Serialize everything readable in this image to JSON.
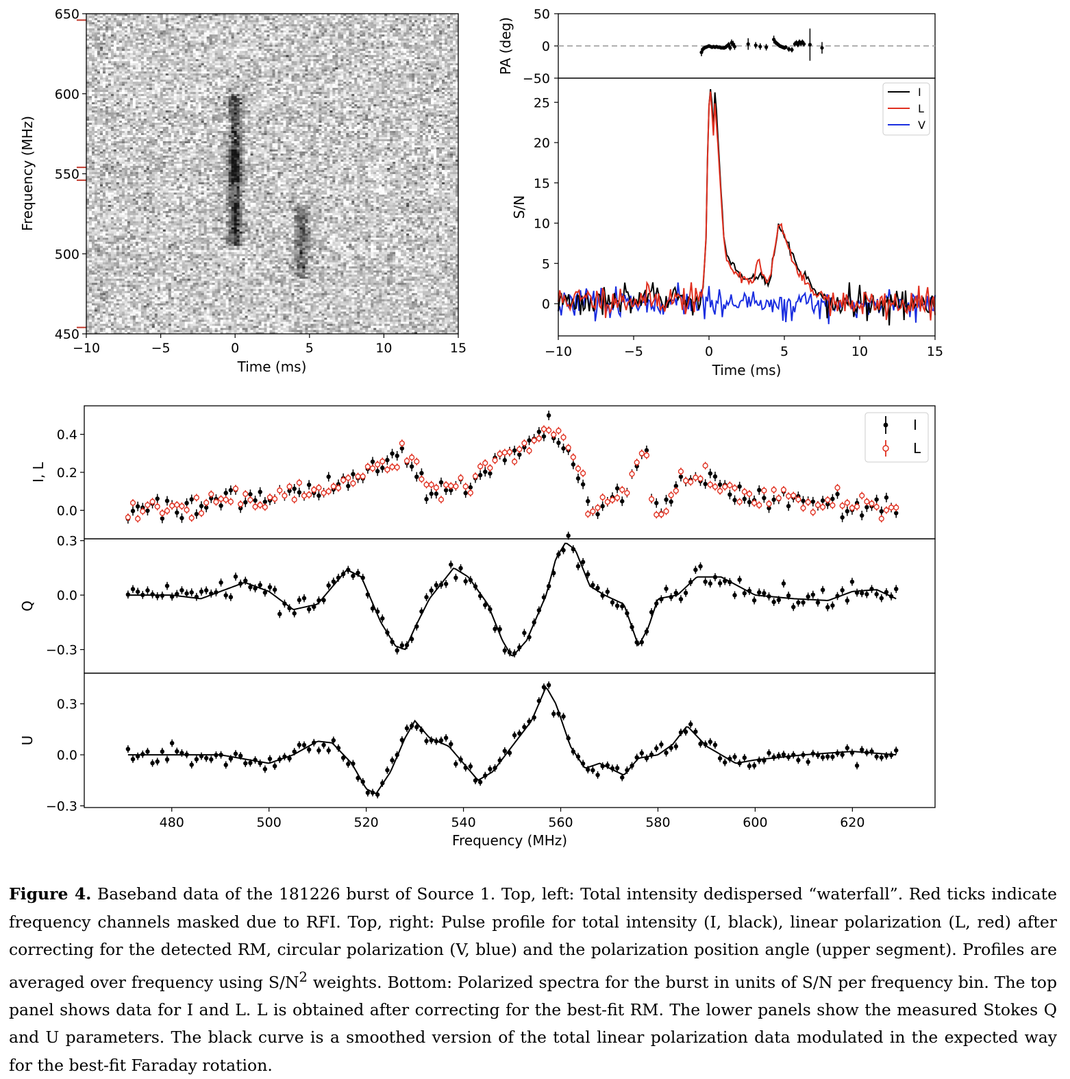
{
  "chart_data": [
    {
      "id": "waterfall",
      "type": "heatmap",
      "title": "",
      "xlabel": "Time (ms)",
      "ylabel": "Frequency (MHz)",
      "xlim": [
        -10,
        15
      ],
      "ylim": [
        450,
        650
      ],
      "xticks": [
        -10,
        -5,
        0,
        5,
        10,
        15
      ],
      "xtick_labels": [
        "−10",
        "−5",
        "0",
        "5",
        "10",
        "15"
      ],
      "yticks": [
        450,
        500,
        550,
        600,
        650
      ],
      "ytick_labels": [
        "450",
        "500",
        "550",
        "600",
        "650"
      ],
      "colormap": "grayscale",
      "rfi_tick_color": "#c0392b",
      "rfi_masked_mhz": [
        646,
        554,
        546,
        454
      ],
      "components": [
        {
          "time_ms": 0.0,
          "freq_mhz": [
            505,
            600
          ]
        },
        {
          "time_ms": 4.5,
          "freq_mhz": [
            485,
            530
          ]
        }
      ]
    },
    {
      "id": "position-angle",
      "type": "scatter",
      "xlim": [
        -10,
        15
      ],
      "ylim": [
        -50,
        50
      ],
      "ylabel": "PA (deg)",
      "yticks": [
        -50,
        0,
        50
      ],
      "ytick_labels": [
        "−50",
        "0",
        "50"
      ],
      "reference_line": {
        "y": 0,
        "style": "dashed",
        "color": "#b0b0b0"
      },
      "points": [
        {
          "x": -0.5,
          "y": -10,
          "err": 6
        },
        {
          "x": -0.4,
          "y": -5,
          "err": 4
        },
        {
          "x": -0.3,
          "y": -3,
          "err": 3
        },
        {
          "x": -0.2,
          "y": -2,
          "err": 2
        },
        {
          "x": -0.1,
          "y": -1,
          "err": 2
        },
        {
          "x": 0.0,
          "y": 0,
          "err": 1
        },
        {
          "x": 0.1,
          "y": -1,
          "err": 1
        },
        {
          "x": 0.2,
          "y": -2,
          "err": 1
        },
        {
          "x": 0.3,
          "y": -1,
          "err": 1
        },
        {
          "x": 0.4,
          "y": -2,
          "err": 1
        },
        {
          "x": 0.5,
          "y": -1,
          "err": 1
        },
        {
          "x": 0.6,
          "y": -2,
          "err": 2
        },
        {
          "x": 0.7,
          "y": -2,
          "err": 2
        },
        {
          "x": 0.8,
          "y": -3,
          "err": 2
        },
        {
          "x": 0.9,
          "y": -3,
          "err": 2
        },
        {
          "x": 1.0,
          "y": -3,
          "err": 3
        },
        {
          "x": 1.1,
          "y": -2,
          "err": 3
        },
        {
          "x": 1.2,
          "y": 0,
          "err": 3
        },
        {
          "x": 1.3,
          "y": 2,
          "err": 4
        },
        {
          "x": 1.4,
          "y": -3,
          "err": 4
        },
        {
          "x": 1.5,
          "y": 5,
          "err": 5
        },
        {
          "x": 1.6,
          "y": 3,
          "err": 5
        },
        {
          "x": 1.7,
          "y": -1,
          "err": 5
        },
        {
          "x": 2.6,
          "y": 3,
          "err": 9
        },
        {
          "x": 3.1,
          "y": 1,
          "err": 5
        },
        {
          "x": 3.4,
          "y": -1,
          "err": 5
        },
        {
          "x": 3.8,
          "y": -2,
          "err": 5
        },
        {
          "x": 4.3,
          "y": 10,
          "err": 6
        },
        {
          "x": 4.4,
          "y": 6,
          "err": 4
        },
        {
          "x": 4.5,
          "y": 4,
          "err": 3
        },
        {
          "x": 4.6,
          "y": 2,
          "err": 3
        },
        {
          "x": 4.7,
          "y": 0,
          "err": 3
        },
        {
          "x": 4.8,
          "y": -1,
          "err": 3
        },
        {
          "x": 4.9,
          "y": -2,
          "err": 3
        },
        {
          "x": 5.0,
          "y": -3,
          "err": 3
        },
        {
          "x": 5.1,
          "y": -2,
          "err": 3
        },
        {
          "x": 5.3,
          "y": -5,
          "err": 4
        },
        {
          "x": 5.5,
          "y": -6,
          "err": 4
        },
        {
          "x": 5.7,
          "y": 3,
          "err": 4
        },
        {
          "x": 5.8,
          "y": 5,
          "err": 4
        },
        {
          "x": 5.9,
          "y": 2,
          "err": 4
        },
        {
          "x": 6.0,
          "y": 6,
          "err": 4
        },
        {
          "x": 6.1,
          "y": 4,
          "err": 4
        },
        {
          "x": 6.2,
          "y": 6,
          "err": 4
        },
        {
          "x": 6.3,
          "y": 3,
          "err": 4
        },
        {
          "x": 6.7,
          "y": 2,
          "err": 25
        },
        {
          "x": 7.5,
          "y": -3,
          "err": 9
        }
      ]
    },
    {
      "id": "pulse-profile",
      "type": "line",
      "xlabel": "Time (ms)",
      "ylabel": "S/N",
      "xlim": [
        -10,
        15
      ],
      "ylim": [
        -4,
        28
      ],
      "xticks": [
        -10,
        -5,
        0,
        5,
        10,
        15
      ],
      "xtick_labels": [
        "−10",
        "−5",
        "0",
        "5",
        "10",
        "15"
      ],
      "yticks": [
        0,
        5,
        10,
        15,
        20,
        25
      ],
      "ytick_labels": [
        "0",
        "5",
        "10",
        "15",
        "20",
        "25"
      ],
      "legend_position": "top-right",
      "series": [
        {
          "name": "I",
          "color": "#000000",
          "envelope": {
            "noise_seed": 3,
            "noise_amp": 0.9,
            "shape": [
              [
                -0.6,
                0.5
              ],
              [
                -0.4,
                2
              ],
              [
                -0.2,
                8
              ],
              [
                -0.1,
                18
              ],
              [
                0.0,
                25
              ],
              [
                0.1,
                26.5
              ],
              [
                0.2,
                24.5
              ],
              [
                0.3,
                21
              ],
              [
                0.4,
                26.5
              ],
              [
                0.55,
                22
              ],
              [
                0.8,
                14
              ],
              [
                1.0,
                8
              ],
              [
                1.2,
                6
              ],
              [
                1.5,
                5
              ],
              [
                2.0,
                3.5
              ],
              [
                2.5,
                3
              ],
              [
                3.0,
                3
              ],
              [
                3.5,
                3.5
              ],
              [
                4.0,
                2.5
              ],
              [
                4.3,
                6
              ],
              [
                4.6,
                9.5
              ],
              [
                4.9,
                9
              ],
              [
                5.2,
                7.5
              ],
              [
                5.5,
                6
              ],
              [
                6.0,
                4
              ],
              [
                6.5,
                3
              ],
              [
                7.0,
                1.5
              ],
              [
                8.0,
                0.5
              ],
              [
                9.0,
                0
              ]
            ]
          }
        },
        {
          "name": "L",
          "color": "#e03020",
          "envelope": {
            "noise_seed": 11,
            "noise_amp": 0.9,
            "shape": [
              [
                -0.6,
                0.5
              ],
              [
                -0.4,
                2
              ],
              [
                -0.2,
                8
              ],
              [
                -0.1,
                18
              ],
              [
                0.0,
                24.5
              ],
              [
                0.1,
                25.5
              ],
              [
                0.2,
                24
              ],
              [
                0.3,
                21
              ],
              [
                0.4,
                25
              ],
              [
                0.55,
                21
              ],
              [
                0.8,
                13
              ],
              [
                1.0,
                7.5
              ],
              [
                1.2,
                5.5
              ],
              [
                1.5,
                4.5
              ],
              [
                2.0,
                3.5
              ],
              [
                2.5,
                3
              ],
              [
                3.0,
                3
              ],
              [
                3.3,
                6
              ],
              [
                3.5,
                3.5
              ],
              [
                4.0,
                2.5
              ],
              [
                4.3,
                6
              ],
              [
                4.6,
                9.8
              ],
              [
                4.9,
                9
              ],
              [
                5.2,
                7.5
              ],
              [
                5.5,
                5.5
              ],
              [
                6.0,
                3.5
              ],
              [
                6.5,
                2.5
              ],
              [
                7.0,
                1.5
              ],
              [
                8.0,
                0.5
              ],
              [
                9.0,
                0
              ]
            ]
          }
        },
        {
          "name": "V",
          "color": "#1a2ee0",
          "envelope": {
            "noise_seed": 23,
            "noise_amp": 0.9,
            "shape": [
              [
                -10,
                0
              ],
              [
                15,
                0
              ]
            ]
          }
        }
      ]
    },
    {
      "id": "spectrum-IL",
      "type": "scatter",
      "ylabel": "I, L",
      "xlim": [
        462,
        637
      ],
      "ylim": [
        -0.15,
        0.55
      ],
      "yticks": [
        0.0,
        0.2,
        0.4
      ],
      "ytick_labels": [
        "0.0",
        "0.2",
        "0.4"
      ],
      "legend_position": "top-right",
      "series": [
        {
          "name": "I",
          "color": "#000000",
          "marker": "filled"
        },
        {
          "name": "L",
          "color": "#e03020",
          "marker": "open"
        }
      ],
      "x_range_mhz": [
        471,
        629
      ],
      "bin_count": 158,
      "profile_knots": [
        [
          471,
          0.0
        ],
        [
          480,
          0.02
        ],
        [
          490,
          0.04
        ],
        [
          500,
          0.06
        ],
        [
          510,
          0.1
        ],
        [
          515,
          0.14
        ],
        [
          520,
          0.2
        ],
        [
          525,
          0.28
        ],
        [
          528,
          0.3
        ],
        [
          530,
          0.22
        ],
        [
          532,
          0.12
        ],
        [
          535,
          0.1
        ],
        [
          540,
          0.14
        ],
        [
          545,
          0.22
        ],
        [
          550,
          0.3
        ],
        [
          553,
          0.34
        ],
        [
          557,
          0.44
        ],
        [
          560,
          0.38
        ],
        [
          563,
          0.22
        ],
        [
          565,
          0.1
        ],
        [
          566,
          0.0
        ],
        [
          568,
          0.0
        ],
        [
          570,
          0.04
        ],
        [
          574,
          0.16
        ],
        [
          577,
          0.3
        ],
        [
          578,
          0.24
        ],
        [
          579,
          0.0
        ],
        [
          581,
          -0.02
        ],
        [
          583,
          0.08
        ],
        [
          585,
          0.2
        ],
        [
          590,
          0.16
        ],
        [
          595,
          0.1
        ],
        [
          600,
          0.06
        ],
        [
          610,
          0.06
        ],
        [
          620,
          0.02
        ],
        [
          629,
          0.0
        ]
      ]
    },
    {
      "id": "spectrum-Q",
      "type": "scatter",
      "ylabel": "Q",
      "xlim": [
        462,
        637
      ],
      "ylim": [
        -0.43,
        0.31
      ],
      "yticks": [
        -0.3,
        0.0,
        0.3
      ],
      "ytick_labels": [
        "−0.3",
        "0.0",
        "0.3"
      ],
      "model_knots": [
        [
          471,
          0.0
        ],
        [
          480,
          0.0
        ],
        [
          486,
          -0.02
        ],
        [
          495,
          0.07
        ],
        [
          500,
          0.02
        ],
        [
          505,
          -0.08
        ],
        [
          510,
          -0.05
        ],
        [
          516,
          0.14
        ],
        [
          519,
          0.1
        ],
        [
          523,
          -0.15
        ],
        [
          526,
          -0.28
        ],
        [
          528,
          -0.3
        ],
        [
          530,
          -0.18
        ],
        [
          533,
          -0.02
        ],
        [
          538,
          0.15
        ],
        [
          541,
          0.1
        ],
        [
          545,
          -0.05
        ],
        [
          548,
          -0.25
        ],
        [
          550,
          -0.34
        ],
        [
          553,
          -0.25
        ],
        [
          557,
          0.0
        ],
        [
          559,
          0.2
        ],
        [
          561,
          0.29
        ],
        [
          563,
          0.25
        ],
        [
          566,
          0.05
        ],
        [
          569,
          0.0
        ],
        [
          573,
          -0.05
        ],
        [
          576,
          -0.28
        ],
        [
          578,
          -0.18
        ],
        [
          580,
          -0.02
        ],
        [
          584,
          0.0
        ],
        [
          588,
          0.1
        ],
        [
          593,
          0.1
        ],
        [
          600,
          0.0
        ],
        [
          608,
          -0.02
        ],
        [
          615,
          -0.03
        ],
        [
          620,
          0.02
        ],
        [
          625,
          0.03
        ],
        [
          629,
          -0.02
        ]
      ]
    },
    {
      "id": "spectrum-U",
      "type": "scatter",
      "ylabel": "U",
      "xlabel": "Frequency (MHz)",
      "xlim": [
        462,
        637
      ],
      "ylim": [
        -0.31,
        0.48
      ],
      "xticks": [
        480,
        500,
        520,
        540,
        560,
        580,
        600,
        620
      ],
      "xtick_labels": [
        "480",
        "500",
        "520",
        "540",
        "560",
        "580",
        "600",
        "620"
      ],
      "yticks": [
        -0.3,
        0.0,
        0.3
      ],
      "ytick_labels": [
        "−0.3",
        "0.0",
        "0.3"
      ],
      "model_knots": [
        [
          471,
          0.0
        ],
        [
          490,
          0.0
        ],
        [
          500,
          -0.05
        ],
        [
          505,
          0.0
        ],
        [
          510,
          0.08
        ],
        [
          513,
          0.07
        ],
        [
          517,
          -0.05
        ],
        [
          520,
          -0.2
        ],
        [
          522,
          -0.23
        ],
        [
          525,
          -0.1
        ],
        [
          528,
          0.1
        ],
        [
          530,
          0.2
        ],
        [
          533,
          0.1
        ],
        [
          537,
          0.05
        ],
        [
          540,
          -0.05
        ],
        [
          543,
          -0.15
        ],
        [
          546,
          -0.1
        ],
        [
          550,
          0.05
        ],
        [
          554,
          0.2
        ],
        [
          557,
          0.4
        ],
        [
          559,
          0.3
        ],
        [
          562,
          0.05
        ],
        [
          565,
          -0.08
        ],
        [
          568,
          -0.05
        ],
        [
          573,
          -0.12
        ],
        [
          576,
          -0.02
        ],
        [
          580,
          0.0
        ],
        [
          583,
          0.06
        ],
        [
          586,
          0.17
        ],
        [
          590,
          0.05
        ],
        [
          596,
          -0.05
        ],
        [
          600,
          -0.03
        ],
        [
          610,
          0.0
        ],
        [
          620,
          0.02
        ],
        [
          629,
          0.0
        ]
      ]
    }
  ],
  "caption": {
    "label": "Figure 4.",
    "text": "Baseband data of the 181226 burst of Source 1. Top, left: Total intensity dedispersed “waterfall”. Red ticks indicate frequency channels masked due to RFI. Top, right: Pulse profile for total intensity (I, black), linear polarization (L, red) after correcting for the detected RM, circular polarization (V, blue) and the polarization position angle (upper segment). Profiles are averaged over frequency using S/N",
    "superscript": "2",
    "text_after": " weights. Bottom: Polarized spectra for the burst in units of S/N per frequency bin. The top panel shows data for I and L. L is obtained after correcting for the best-fit RM. The lower panels show the measured Stokes Q and U parameters. The black curve is a smoothed version of the total linear polarization data modulated in the expected way for the best-fit Faraday rotation."
  }
}
